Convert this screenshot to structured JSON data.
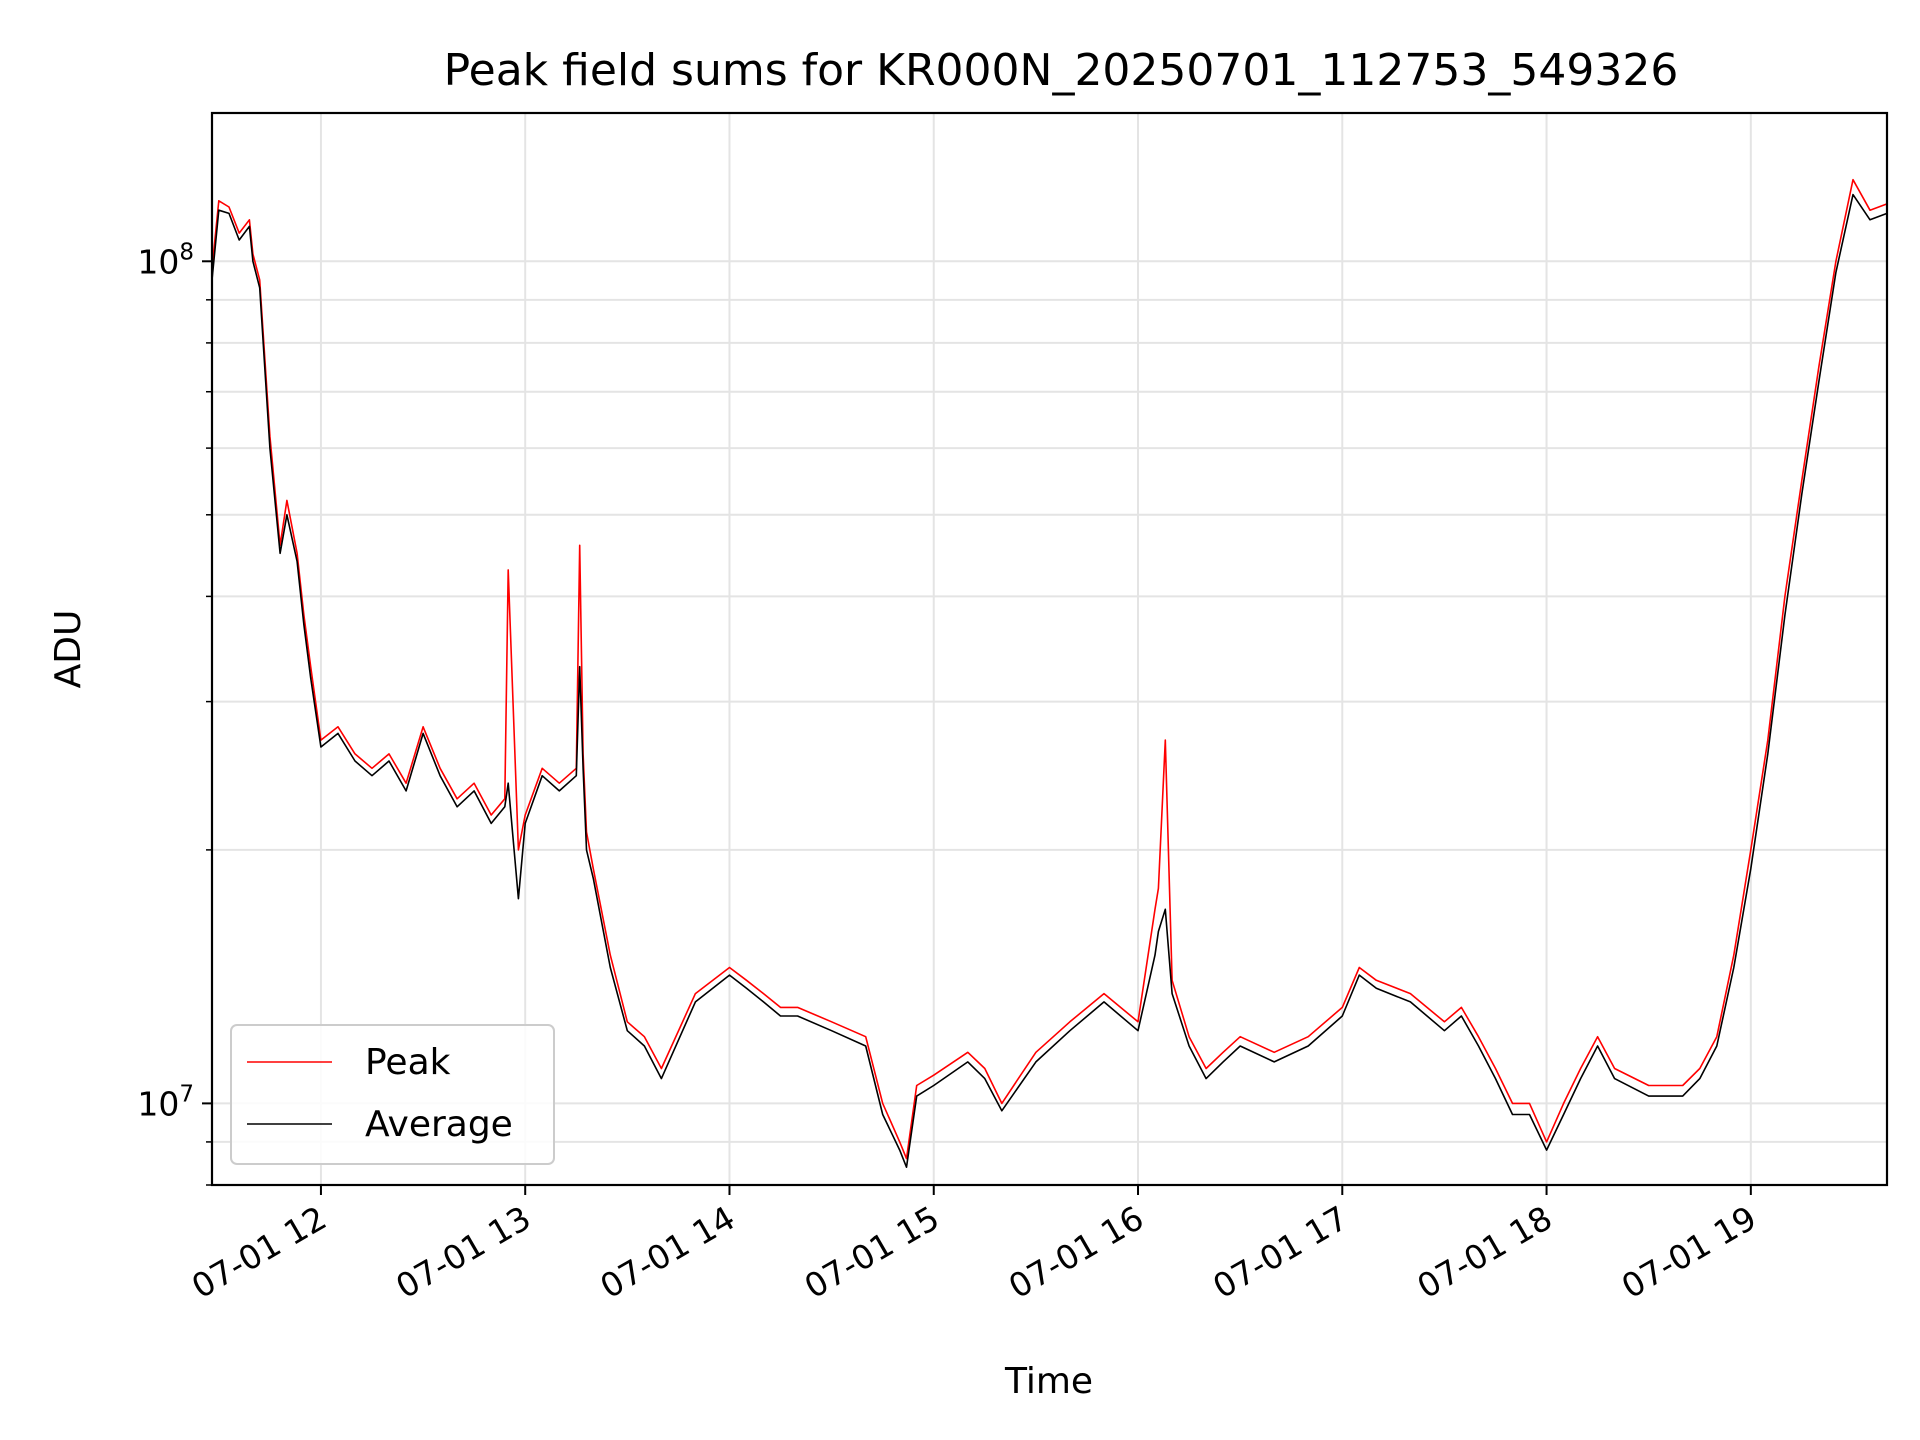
{
  "chart_data": {
    "type": "line",
    "title": "Peak field sums for KR000N_20250701_112753_549326",
    "xlabel": "Time",
    "ylabel": "ADU",
    "yscale": "log",
    "ylim": [
      8000000,
      150000000
    ],
    "xlim": [
      "07-01 11:28",
      "07-01 19:40"
    ],
    "grid": true,
    "legend_position": "lower-left",
    "x_ticks": [
      "07-01 12",
      "07-01 13",
      "07-01 14",
      "07-01 15",
      "07-01 16",
      "07-01 17",
      "07-01 18",
      "07-01 19"
    ],
    "y_ticks": [
      {
        "base": "10",
        "exp": "7"
      },
      {
        "base": "10",
        "exp": "8"
      }
    ],
    "series": [
      {
        "name": "Peak",
        "color": "#ff0000",
        "x": [
          "11:28",
          "11:30",
          "11:33",
          "11:36",
          "11:39",
          "11:40",
          "11:42",
          "11:45",
          "11:48",
          "11:50",
          "11:53",
          "11:55",
          "11:57",
          "12:00",
          "12:05",
          "12:10",
          "12:15",
          "12:20",
          "12:25",
          "12:30",
          "12:35",
          "12:40",
          "12:45",
          "12:50",
          "12:54",
          "12:55",
          "12:58",
          "13:00",
          "13:05",
          "13:10",
          "13:15",
          "13:16",
          "13:17",
          "13:18",
          "13:20",
          "13:25",
          "13:30",
          "13:35",
          "13:40",
          "13:50",
          "14:00",
          "14:05",
          "14:10",
          "14:15",
          "14:20",
          "14:30",
          "14:40",
          "14:45",
          "14:50",
          "14:52",
          "14:55",
          "15:00",
          "15:10",
          "15:15",
          "15:20",
          "15:30",
          "15:40",
          "15:50",
          "16:00",
          "16:05",
          "16:06",
          "16:08",
          "16:10",
          "16:15",
          "16:20",
          "16:25",
          "16:30",
          "16:40",
          "16:50",
          "17:00",
          "17:05",
          "17:10",
          "17:20",
          "17:30",
          "17:35",
          "17:40",
          "17:45",
          "17:50",
          "17:55",
          "18:00",
          "18:05",
          "18:10",
          "18:15",
          "18:20",
          "18:30",
          "18:40",
          "18:45",
          "18:50",
          "18:55",
          "19:00",
          "19:05",
          "19:10",
          "19:15",
          "19:20",
          "19:25",
          "19:30",
          "19:35",
          "19:40"
        ],
        "values": [
          98000000,
          118000000,
          116000000,
          108000000,
          112000000,
          102000000,
          95000000,
          62000000,
          46000000,
          52000000,
          45000000,
          38000000,
          33000000,
          27000000,
          28000000,
          26000000,
          25000000,
          26000000,
          24000000,
          28000000,
          25000000,
          23000000,
          24000000,
          22000000,
          23000000,
          43000000,
          20000000,
          22000000,
          25000000,
          24000000,
          25000000,
          46000000,
          26000000,
          21000000,
          19000000,
          15000000,
          12500000,
          12000000,
          11000000,
          13500000,
          14500000,
          14000000,
          13500000,
          13000000,
          13000000,
          12500000,
          12000000,
          10000000,
          9000000,
          8600000,
          10500000,
          10800000,
          11500000,
          11000000,
          10000000,
          11500000,
          12500000,
          13500000,
          12500000,
          17000000,
          18000000,
          27000000,
          14000000,
          12000000,
          11000000,
          11500000,
          12000000,
          11500000,
          12000000,
          13000000,
          14500000,
          14000000,
          13500000,
          12500000,
          13000000,
          12000000,
          11000000,
          10000000,
          10000000,
          9000000,
          10000000,
          11000000,
          12000000,
          11000000,
          10500000,
          10500000,
          11000000,
          12000000,
          15000000,
          20000000,
          27000000,
          40000000,
          55000000,
          75000000,
          100000000,
          125000000,
          115000000,
          117000000
        ]
      },
      {
        "name": "Average",
        "color": "#000000",
        "x": [
          "11:28",
          "11:30",
          "11:33",
          "11:36",
          "11:39",
          "11:40",
          "11:42",
          "11:45",
          "11:48",
          "11:50",
          "11:53",
          "11:55",
          "11:57",
          "12:00",
          "12:05",
          "12:10",
          "12:15",
          "12:20",
          "12:25",
          "12:30",
          "12:35",
          "12:40",
          "12:45",
          "12:50",
          "12:54",
          "12:55",
          "12:58",
          "13:00",
          "13:05",
          "13:10",
          "13:15",
          "13:16",
          "13:17",
          "13:18",
          "13:20",
          "13:25",
          "13:30",
          "13:35",
          "13:40",
          "13:50",
          "14:00",
          "14:05",
          "14:10",
          "14:15",
          "14:20",
          "14:30",
          "14:40",
          "14:45",
          "14:50",
          "14:52",
          "14:55",
          "15:00",
          "15:10",
          "15:15",
          "15:20",
          "15:30",
          "15:40",
          "15:50",
          "16:00",
          "16:05",
          "16:06",
          "16:08",
          "16:10",
          "16:15",
          "16:20",
          "16:25",
          "16:30",
          "16:40",
          "16:50",
          "17:00",
          "17:05",
          "17:10",
          "17:20",
          "17:30",
          "17:35",
          "17:40",
          "17:45",
          "17:50",
          "17:55",
          "18:00",
          "18:05",
          "18:10",
          "18:15",
          "18:20",
          "18:30",
          "18:40",
          "18:45",
          "18:50",
          "18:55",
          "19:00",
          "19:05",
          "19:10",
          "19:15",
          "19:20",
          "19:25",
          "19:30",
          "19:35",
          "19:40"
        ],
        "values": [
          95000000,
          115000000,
          114000000,
          106000000,
          110000000,
          100000000,
          93000000,
          60000000,
          45000000,
          50000000,
          44000000,
          37000000,
          32000000,
          26500000,
          27500000,
          25500000,
          24500000,
          25500000,
          23500000,
          27500000,
          24500000,
          22500000,
          23500000,
          21500000,
          22500000,
          24000000,
          17500000,
          21500000,
          24500000,
          23500000,
          24500000,
          33000000,
          25000000,
          20000000,
          18500000,
          14500000,
          12200000,
          11700000,
          10700000,
          13200000,
          14200000,
          13700000,
          13200000,
          12700000,
          12700000,
          12200000,
          11700000,
          9700000,
          8800000,
          8400000,
          10200000,
          10500000,
          11200000,
          10700000,
          9800000,
          11200000,
          12200000,
          13200000,
          12200000,
          15000000,
          16000000,
          17000000,
          13500000,
          11700000,
          10700000,
          11200000,
          11700000,
          11200000,
          11700000,
          12700000,
          14200000,
          13700000,
          13200000,
          12200000,
          12700000,
          11700000,
          10700000,
          9700000,
          9700000,
          8800000,
          9700000,
          10700000,
          11700000,
          10700000,
          10200000,
          10200000,
          10700000,
          11700000,
          14500000,
          19000000,
          26000000,
          38000000,
          53000000,
          72000000,
          97000000,
          120000000,
          112000000,
          114000000
        ]
      }
    ]
  }
}
